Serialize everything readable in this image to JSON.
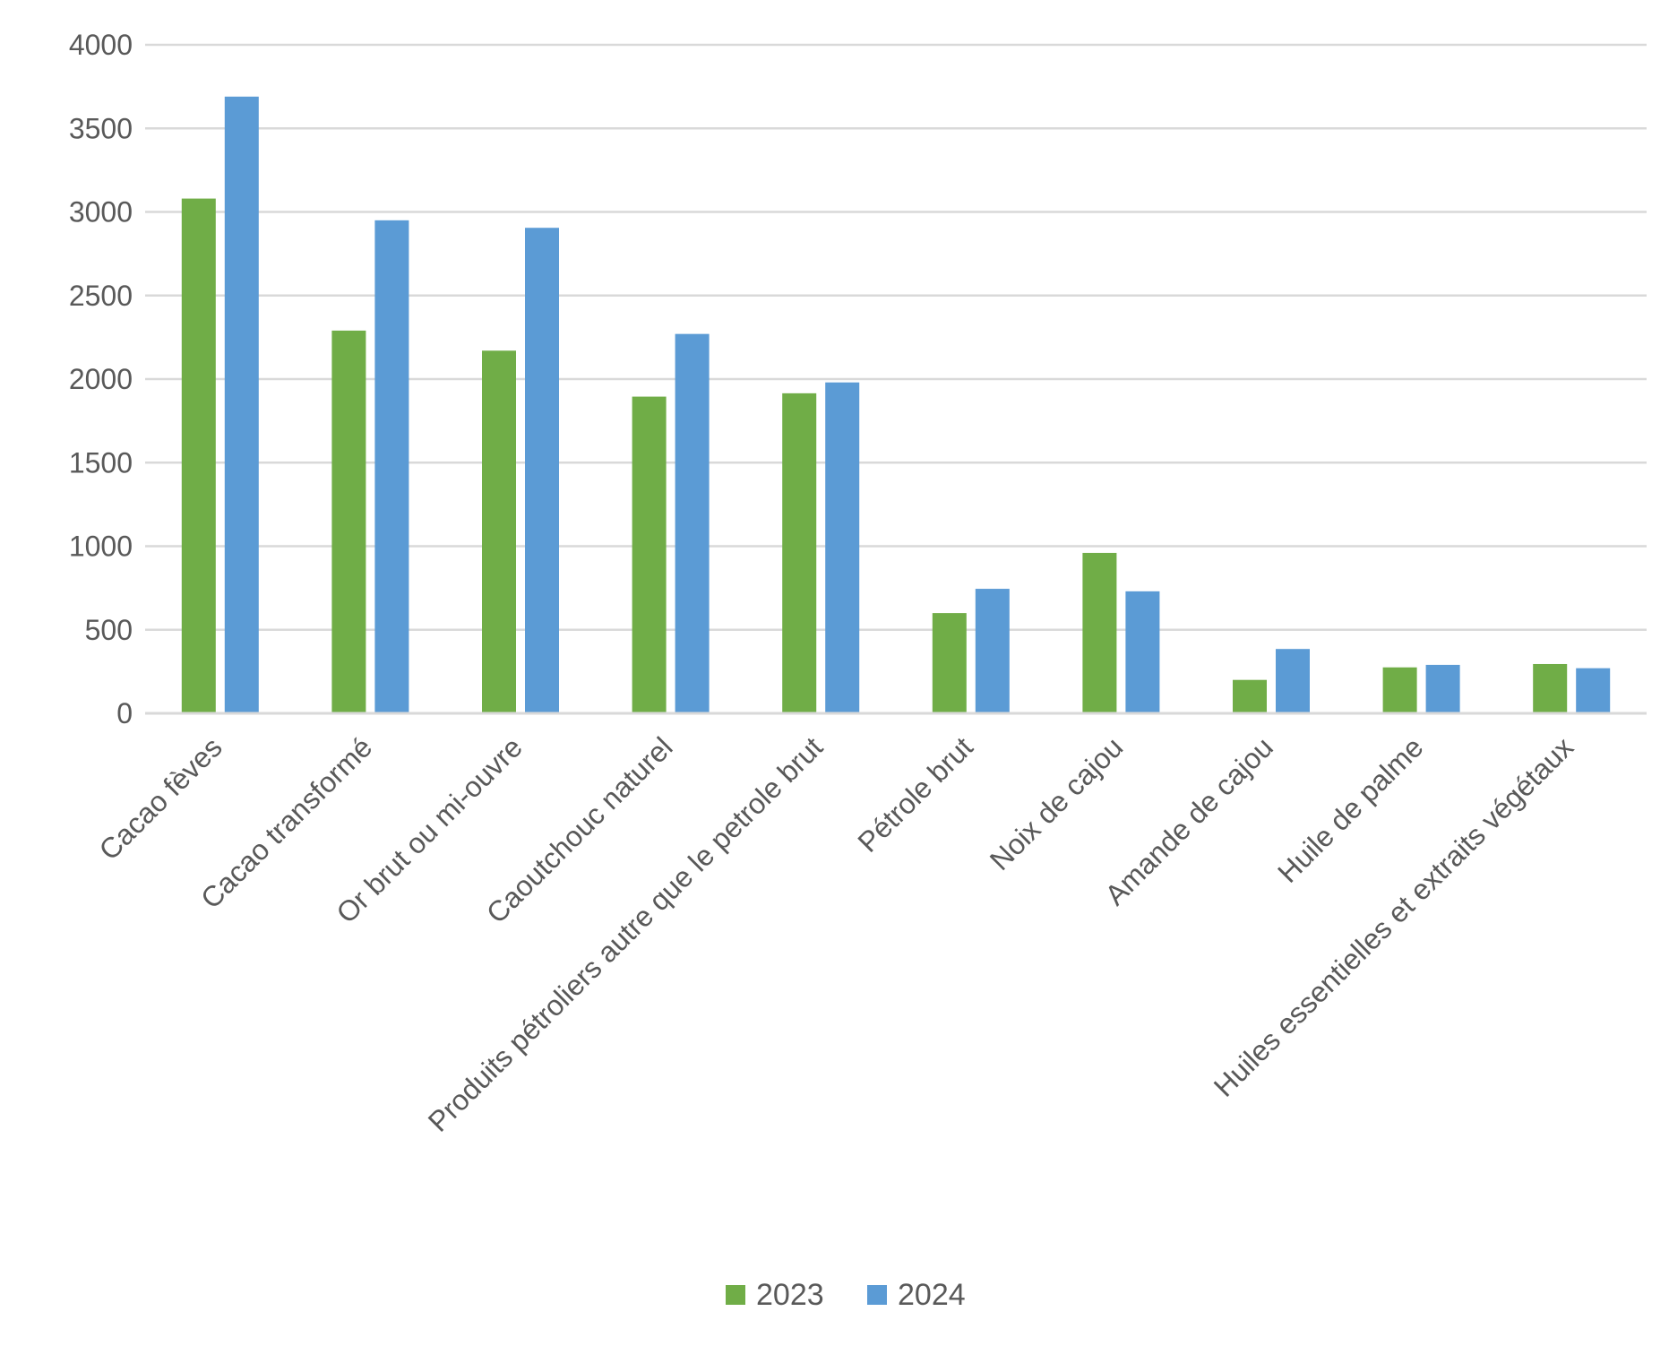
{
  "chart_data": {
    "type": "bar",
    "title": "",
    "xlabel": "",
    "ylabel": "",
    "ylim": [
      0,
      4000
    ],
    "yticks": [
      0,
      500,
      1000,
      1500,
      2000,
      2500,
      3000,
      3500,
      4000
    ],
    "grid": true,
    "legend_position": "bottom-center",
    "categories": [
      "Cacao fèves",
      "Cacao transformé",
      "Or brut ou mi-ouvre",
      "Caoutchouc naturel",
      "Produits pétroliers autre que le petrole brut",
      "Pétrole brut",
      "Noix de cajou",
      "Amande de cajou",
      "Huile de palme",
      "Huiles essentielles et extraits végétaux"
    ],
    "series": [
      {
        "name": "2023",
        "color": "#70ad47",
        "values": [
          3080,
          2290,
          2170,
          1895,
          1915,
          600,
          960,
          200,
          275,
          295
        ]
      },
      {
        "name": "2024",
        "color": "#5b9bd5",
        "values": [
          3690,
          2950,
          2905,
          2270,
          1980,
          745,
          730,
          385,
          290,
          270
        ]
      }
    ],
    "gridline_color": "#d9d9d9",
    "axis_color": "#d9d9d9"
  }
}
